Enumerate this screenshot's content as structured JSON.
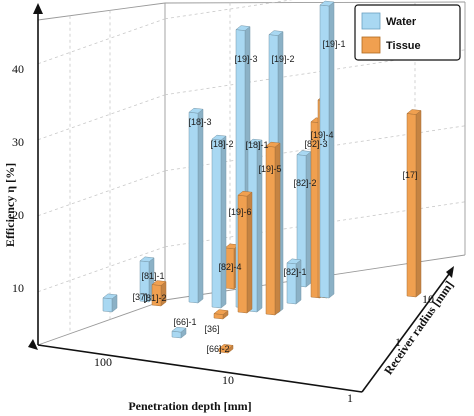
{
  "chart_data": {
    "type": "bar3d",
    "zlabel": "Efficiency η [%]",
    "xlabel": "Penetration depth [mm]",
    "ylabel": "Receiver radius [mm]",
    "z_ticks": [
      "10",
      "20",
      "30",
      "40"
    ],
    "x_ticks": [
      "100",
      "10",
      "1"
    ],
    "y_ticks": [
      "1",
      "10"
    ],
    "zlim": [
      3,
      48
    ],
    "legend": {
      "placement": "top-right",
      "items": [
        {
          "name": "Water",
          "color": "#a9d8f2"
        },
        {
          "name": "Tissue",
          "color": "#f0a050"
        }
      ]
    },
    "bars": [
      {
        "label": "[37]",
        "series": "Water",
        "value": 4.8
      },
      {
        "label": "[81]-1",
        "series": "Water",
        "value": 8.5
      },
      {
        "label": "[81]-2",
        "series": "Tissue",
        "value": 5.8
      },
      {
        "label": "[66]-1",
        "series": "Water",
        "value": 3.8
      },
      {
        "label": "[36]",
        "series": "Tissue",
        "value": 3.6
      },
      {
        "label": "[66]-2",
        "series": "Tissue",
        "value": 3.5
      },
      {
        "label": "[18]-3",
        "series": "Water",
        "value": 29
      },
      {
        "label": "[18]-2",
        "series": "Water",
        "value": 26
      },
      {
        "label": "[19]-3",
        "series": "Water",
        "value": 41
      },
      {
        "label": "[18]-1",
        "series": "Water",
        "value": 26
      },
      {
        "label": "[19]-6",
        "series": "Tissue",
        "value": 19
      },
      {
        "label": "[82]-4",
        "series": "Tissue",
        "value": 8.5
      },
      {
        "label": "[19]-2",
        "series": "Water",
        "value": 41
      },
      {
        "label": "[19]-5",
        "series": "Tissue",
        "value": 26
      },
      {
        "label": "[82]-2",
        "series": "Water",
        "value": 21
      },
      {
        "label": "[82]-1",
        "series": "Water",
        "value": 8.5
      },
      {
        "label": "[82]-3",
        "series": "Tissue",
        "value": 27
      },
      {
        "label": "[19]-4",
        "series": "Tissue",
        "value": 30
      },
      {
        "label": "[19]-1",
        "series": "Water",
        "value": 43
      },
      {
        "label": "[17]",
        "series": "Tissue",
        "value": 28
      }
    ]
  }
}
